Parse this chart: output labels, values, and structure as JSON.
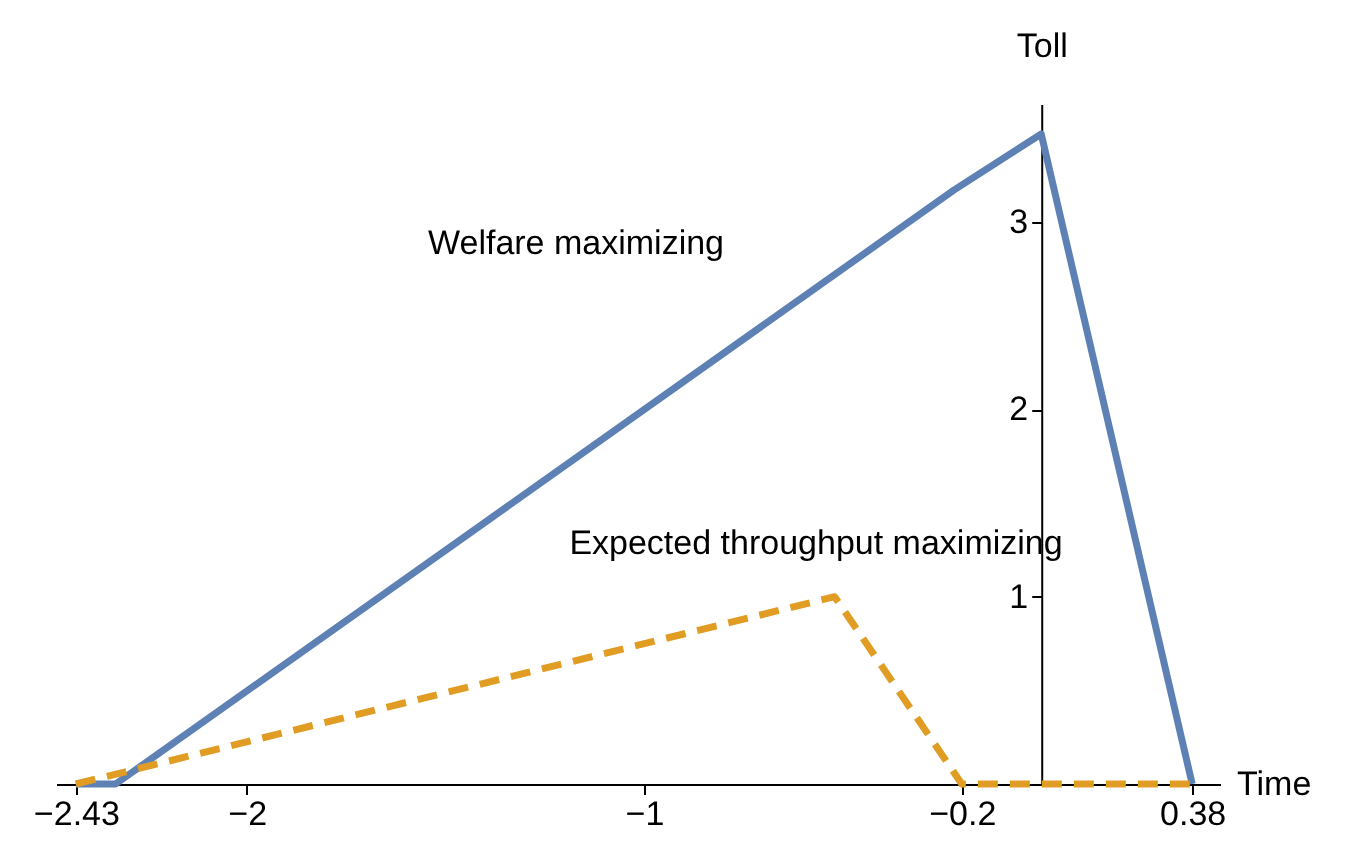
{
  "chart_data": {
    "type": "line",
    "xlabel": "Time",
    "ylabel": "Toll",
    "xlim": [
      -2.48,
      0.45
    ],
    "ylim": [
      0,
      3.63
    ],
    "xticks": [
      {
        "value": -2.43,
        "label": "−2.43"
      },
      {
        "value": -2,
        "label": "−2"
      },
      {
        "value": -1,
        "label": "−1"
      },
      {
        "value": -0.2,
        "label": "−0.2"
      },
      0.38
    ],
    "yticks": [
      1,
      2,
      3
    ],
    "grid": false,
    "series": [
      {
        "color": "#5e81b5",
        "line_style": "solid",
        "x": [
          -2.43,
          -2.33,
          -0.22,
          0,
          0.38
        ],
        "values": [
          0,
          0,
          3.17,
          3.47,
          0
        ]
      },
      {
        "color": "#e19c24",
        "line_style": "dashed",
        "x": [
          -2.43,
          -0.52,
          -0.2,
          0.38
        ],
        "values": [
          0,
          1.0,
          0,
          0
        ]
      }
    ],
    "annotations": [
      "Welfare maximizing",
      "Expected throughput maximizing"
    ]
  }
}
